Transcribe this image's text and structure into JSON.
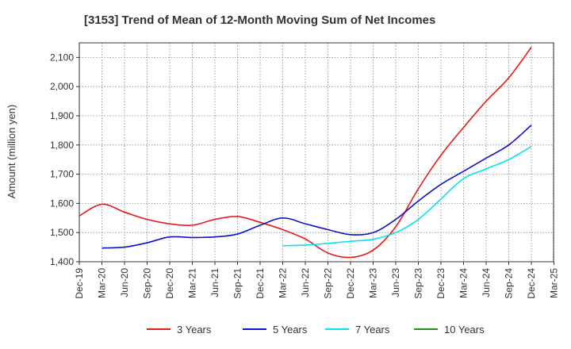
{
  "chart_data": {
    "type": "line",
    "title": "[3153]  Trend of Mean of 12-Month Moving Sum of Net Incomes",
    "xlabel": "",
    "ylabel": "Amount (million yen)",
    "ylim": [
      1400,
      2150
    ],
    "yticks": [
      1400,
      1500,
      1600,
      1700,
      1800,
      1900,
      2000,
      2100
    ],
    "ytick_labels": [
      "1,400",
      "1,500",
      "1,600",
      "1,700",
      "1,800",
      "1,900",
      "2,000",
      "2,100"
    ],
    "xtick_labels": [
      "Dec-19",
      "Mar-20",
      "Jun-20",
      "Sep-20",
      "Dec-20",
      "Mar-21",
      "Jun-21",
      "Sep-21",
      "Dec-21",
      "Mar-22",
      "Jun-22",
      "Sep-22",
      "Dec-22",
      "Mar-23",
      "Jun-23",
      "Sep-23",
      "Dec-23",
      "Mar-24",
      "Jun-24",
      "Sep-24",
      "Dec-24",
      "Mar-25"
    ],
    "grid": true,
    "legend_position": "bottom",
    "series": [
      {
        "name": "3 Years",
        "color": "#e41a1a",
        "x": [
          "Dec-19",
          "Mar-20",
          "Jun-20",
          "Sep-20",
          "Dec-20",
          "Mar-21",
          "Jun-21",
          "Sep-21",
          "Dec-21",
          "Mar-22",
          "Jun-22",
          "Sep-22",
          "Dec-22",
          "Mar-23",
          "Jun-23",
          "Sep-23",
          "Dec-23",
          "Mar-24",
          "Jun-24",
          "Sep-24",
          "Dec-24"
        ],
        "values": [
          1557,
          1597,
          1570,
          1545,
          1530,
          1525,
          1545,
          1555,
          1535,
          1510,
          1478,
          1430,
          1415,
          1440,
          1520,
          1650,
          1765,
          1860,
          1950,
          2030,
          2135
        ]
      },
      {
        "name": "5 Years",
        "color": "#1010c8",
        "x": [
          "Mar-20",
          "Jun-20",
          "Sep-20",
          "Dec-20",
          "Mar-21",
          "Jun-21",
          "Sep-21",
          "Dec-21",
          "Mar-22",
          "Jun-22",
          "Sep-22",
          "Dec-22",
          "Mar-23",
          "Jun-23",
          "Sep-23",
          "Dec-23",
          "Mar-24",
          "Jun-24",
          "Sep-24",
          "Dec-24"
        ],
        "values": [
          1447,
          1450,
          1465,
          1485,
          1483,
          1485,
          1495,
          1525,
          1550,
          1530,
          1510,
          1493,
          1500,
          1545,
          1608,
          1665,
          1710,
          1755,
          1800,
          1868
        ]
      },
      {
        "name": "7 Years",
        "color": "#00e5ee",
        "x": [
          "Mar-22",
          "Jun-22",
          "Sep-22",
          "Dec-22",
          "Mar-23",
          "Jun-23",
          "Sep-23",
          "Dec-23",
          "Mar-24",
          "Jun-24",
          "Sep-24",
          "Dec-24"
        ],
        "values": [
          1455,
          1457,
          1463,
          1470,
          1477,
          1500,
          1545,
          1615,
          1685,
          1718,
          1750,
          1795
        ]
      },
      {
        "name": "10 Years",
        "color": "#228b22",
        "x": [],
        "values": []
      }
    ]
  }
}
